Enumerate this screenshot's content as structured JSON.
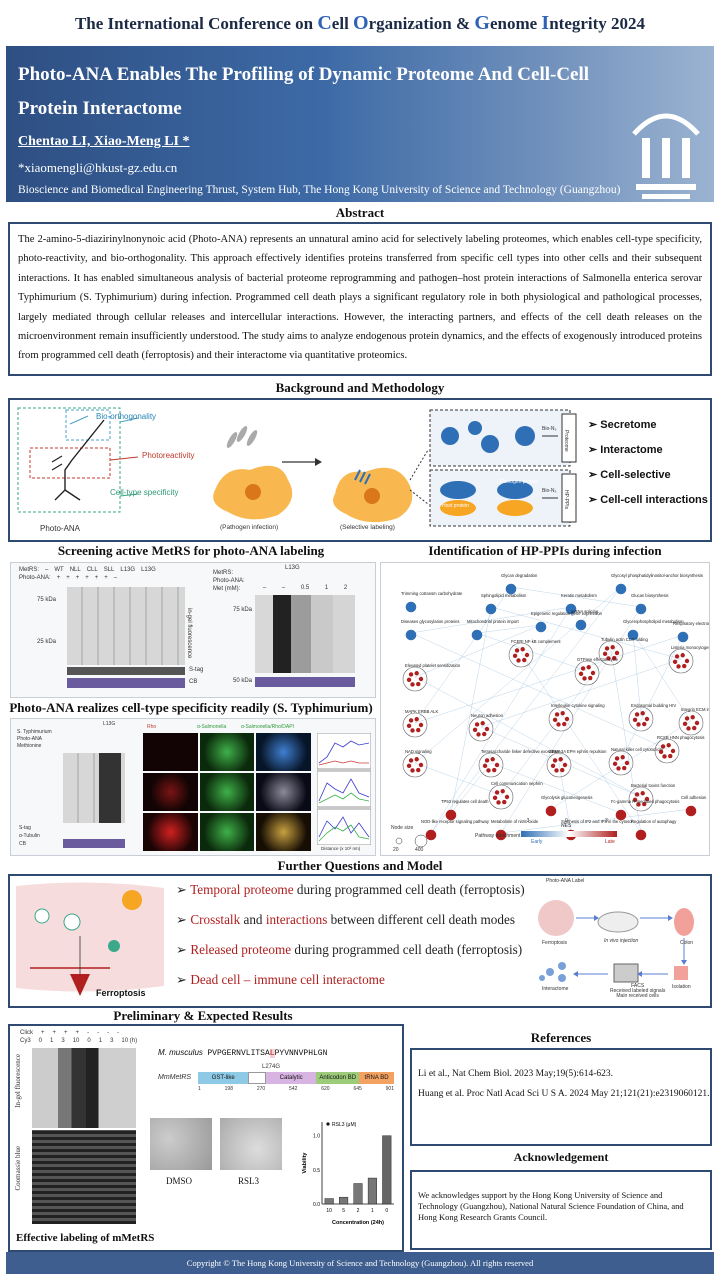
{
  "conference": {
    "parts": [
      {
        "t": "The International Conference on ",
        "cap": false
      },
      {
        "t": "C",
        "cap": true
      },
      {
        "t": "ell ",
        "cap": false
      },
      {
        "t": "O",
        "cap": true
      },
      {
        "t": "rganization & ",
        "cap": false
      },
      {
        "t": "G",
        "cap": true
      },
      {
        "t": "enome ",
        "cap": false
      },
      {
        "t": "I",
        "cap": true
      },
      {
        "t": "ntegrity 2024",
        "cap": false
      }
    ]
  },
  "header": {
    "title": "Photo-ANA Enables The Profiling of Dynamic Proteome And Cell-Cell Protein Interactome",
    "authors": "Chentao LI, Xiao-Meng LI *",
    "email": "*xiaomengli@hkust-gz.edu.cn",
    "affiliation": "Bioscience and Biomedical Engineering Thrust, System Hub, The Hong Kong University of Science and Technology (Guangzhou)"
  },
  "abstract": {
    "heading": "Abstract",
    "text": "The 2-amino-5-diazirinylnonynoic acid (Photo-ANA) represents an unnatural amino acid for selectively labeling proteomes, which enables cell-type specificity, photo-reactivity, and bio-orthogonality. This approach effectively identifies proteins transferred from specific cell types into other cells and their subsequent interactions. It has enabled simultaneous analysis of bacterial proteome reprogramming and pathogen–host protein interactions of Salmonella enterica serovar Typhimurium (S. Typhimurium) during infection. Programmed cell death plays a significant regulatory role in both physiological and pathological processes, largely mediated through cellular releases and intercellular interactions. However, the interacting partners, and effects of the cell death releases on the microenvironment remain insufficiently understood. The study aims to analyze endogenous protein dynamics, and the effects of exogenously introduced proteins from programmed cell death (ferroptosis) and their interactome via quantitative proteomics."
  },
  "background": {
    "heading": "Background and Methodology",
    "labels": {
      "bio": "Bio-orthogonality",
      "photo": "Photoreactivity",
      "celltype": "Cell-type specificity",
      "molecule": "Photo-ANA",
      "pathogen": "(Pathogen infection)",
      "selective": "(Selective labeling)",
      "pathogenProtein": "Pathogen protein",
      "hostProtein": "Host protein",
      "bioN3a": "Bio-N₃",
      "bioN3b": "Bio-N₃",
      "proteome": "Proteome",
      "hpppi": "HP-PPIs"
    },
    "bullets": [
      "Secretome",
      "Interactome",
      "Cell-selective",
      "Cell-cell interactions"
    ]
  },
  "screening": {
    "heading": "Screening active MetRS for photo-ANA labeling",
    "rowA": [
      "MetRS:",
      "–",
      "WT",
      "NLL",
      "CLL",
      "SLL",
      "L13G",
      "L13G"
    ],
    "rowB": [
      "Photo-ANA:",
      "+",
      "+",
      "+",
      "+",
      "+",
      "+",
      "–"
    ],
    "markers": [
      "75 kDa",
      "25 kDa",
      "75 kDa",
      "50 kDa"
    ],
    "side1": "in-gel fluorescence",
    "stag": "S-tag",
    "cb": "CB",
    "rightTop": "L13G",
    "rightRows": [
      "MetRS:",
      "Photo-ANA:",
      "Met (mM):"
    ],
    "metVals": [
      "–",
      "–",
      "0.5",
      "1",
      "2"
    ]
  },
  "hpppi": {
    "heading": "Identification of HP-PPIs during infection",
    "labels": [
      "Glycan degradation",
      "Glycosyl phosphatidylinositol-anchor biosynthesis",
      "Trimming cotransm carbohydrate",
      "Sphingolipid metabolism",
      "Keratin metabolism",
      "Glucan biosynthesis",
      "Diseases glycosylation proteins",
      "Mitochondrial protein import",
      "Epigenetic regulation gene expression",
      "mRNA splicing",
      "Glycerophospholipid metabolism",
      "Respiratory electron ATP chemiosmotic",
      "Elevated platelet sensitization",
      "FCERI NF-kB complement",
      "Tubulin actin CCT folding",
      "Listeria monocytogenes EGFR downregulation",
      "GTPase effector cycle",
      "MAPK ERBB ALK",
      "Neuron adhesion",
      "Interleukin cytokine signaling",
      "Endosomal budding HIV",
      "NAD signaling",
      "Tetrasaccharide linker defective exostoses",
      "SEMA3A EPH ephrin repulsion",
      "Natural killer cell cytotoxicity",
      "RCSB HNN phagocytosis",
      "Integrin ECM interaction",
      "Cell communication nephrin",
      "Bacterial toxins function",
      "TP53 regulates cell death",
      "Glycolysis gluconeogenesis",
      "Fc-gamma R-mediated phagocytosis",
      "Cell adhesion",
      "NOD-like receptor signaling pathway",
      "Metabolism of nitric oxide",
      "Synthesis of IP2 and IP3 in the cytosol",
      "Regulation of autophagy"
    ],
    "legend": {
      "nodeSize": "Node size",
      "v1": "20",
      "v2": "400",
      "enrichment": "Pathway enrichment",
      "nes": "NES",
      "early": "Early",
      "late": "Late",
      "t0": "-3",
      "t1": "0",
      "t2": "3"
    }
  },
  "celltype": {
    "heading": "Photo-ANA realizes cell-type specificity readily (S. Typhimurium)",
    "rows": [
      "S. Typhimurium",
      "Photo-ANA",
      "Methionine"
    ],
    "stag": "S-tag",
    "tubulin": "α-Tubulin",
    "cb": "CB",
    "l13g": "L13G",
    "side": "in-gel fluorescence",
    "colRho": "Rho",
    "colSal": "α-Salmonella",
    "colMerge": "α-Salmonella/Rho/DAPI",
    "plotX": "Distance (x 10² nm)",
    "plotY": "Intensity",
    "plotLegend": [
      "Rho",
      "Sal",
      "Tub"
    ]
  },
  "further": {
    "heading": "Further Questions and Model",
    "items": [
      {
        "red": "Temporal proteome",
        "rest": " during programmed cell death (ferroptosis)"
      },
      {
        "red": "Crosstalk",
        "mid": " and ",
        "red2": "interactions",
        "rest": " between different cell death modes"
      },
      {
        "red": "Released proteome",
        "rest": " during programmed cell death (ferroptosis)"
      },
      {
        "red": "Dead cell – immune cell interactome",
        "rest": ""
      }
    ],
    "ferroptosis": "Ferroptosis",
    "model": {
      "label": "Photo-ANA Label",
      "ferroptosis": "Ferroptosis",
      "injection": "In vivo injection",
      "colon": "Colon",
      "isolation": "Isolation",
      "interactome": "Interactome",
      "facs": "FACS",
      "facs2": "Received labeled signals",
      "facs3": "Main received cells"
    }
  },
  "preliminary": {
    "heading": "Preliminary & Expected Results",
    "clickRow": [
      "Click",
      "+",
      "+",
      "+",
      "+",
      "-",
      "-",
      "-",
      "-"
    ],
    "cy3Row": [
      "Cy3",
      "0",
      "1",
      "3",
      "10",
      "0",
      "1",
      "3",
      "10 (h)"
    ],
    "sideTop": "In-gel fluorescence",
    "sideBottom": "Coomassie blue",
    "caption": "Effective labeling of mMetRS",
    "musculusLabel": "M. musculus",
    "seqBefore": "PVPGERNVLITSA",
    "seqRed": "L",
    "seqAfter": "PYVNNVPHLGN",
    "mutation": "L274G",
    "mmLabel": "MmMetRS",
    "domains": [
      "GST-like",
      "Catalytic",
      "Anticodon BD",
      "tRNA BD"
    ],
    "positions": [
      "1",
      "198",
      "270",
      "542",
      "620",
      "645",
      "901"
    ],
    "dmso": "DMSO",
    "rsl3": "RSL3",
    "chartLegend": "RSL3 (μM)"
  },
  "chart_data": {
    "type": "bar",
    "categories": [
      "10",
      "5",
      "2",
      "1",
      "0"
    ],
    "values": [
      0.08,
      0.1,
      0.3,
      0.38,
      1.0
    ],
    "ylabel": "Viability",
    "xlabel": "Concentration (24h)",
    "ylim": [
      0,
      1.2
    ],
    "yticks": [
      "0.0",
      "0.5",
      "1.0"
    ],
    "legend": "RSL3 (μM)"
  },
  "references": {
    "heading": "References",
    "items": [
      "Li et al., Nat Chem Biol. 2023 May;19(5):614-623.",
      "Huang et al. Proc Natl Acad Sci U S A. 2024 May 21;121(21):e2319060121."
    ]
  },
  "acknowledgement": {
    "heading": "Acknowledgement",
    "text": "We acknowledges support by the Hong Kong University of Science and Technology (Guangzhou), National Natural Science Foundation of China, and Hong Kong Research Grants Council."
  },
  "footer": "Copyright © The Hong Kong University of Science and Technology (Guangzhou). All rights reserved",
  "colors": {
    "navy": "#2f4b73",
    "accentBlue": "#2e63b5",
    "red": "#b01e1e",
    "orange": "#f0a01e"
  }
}
